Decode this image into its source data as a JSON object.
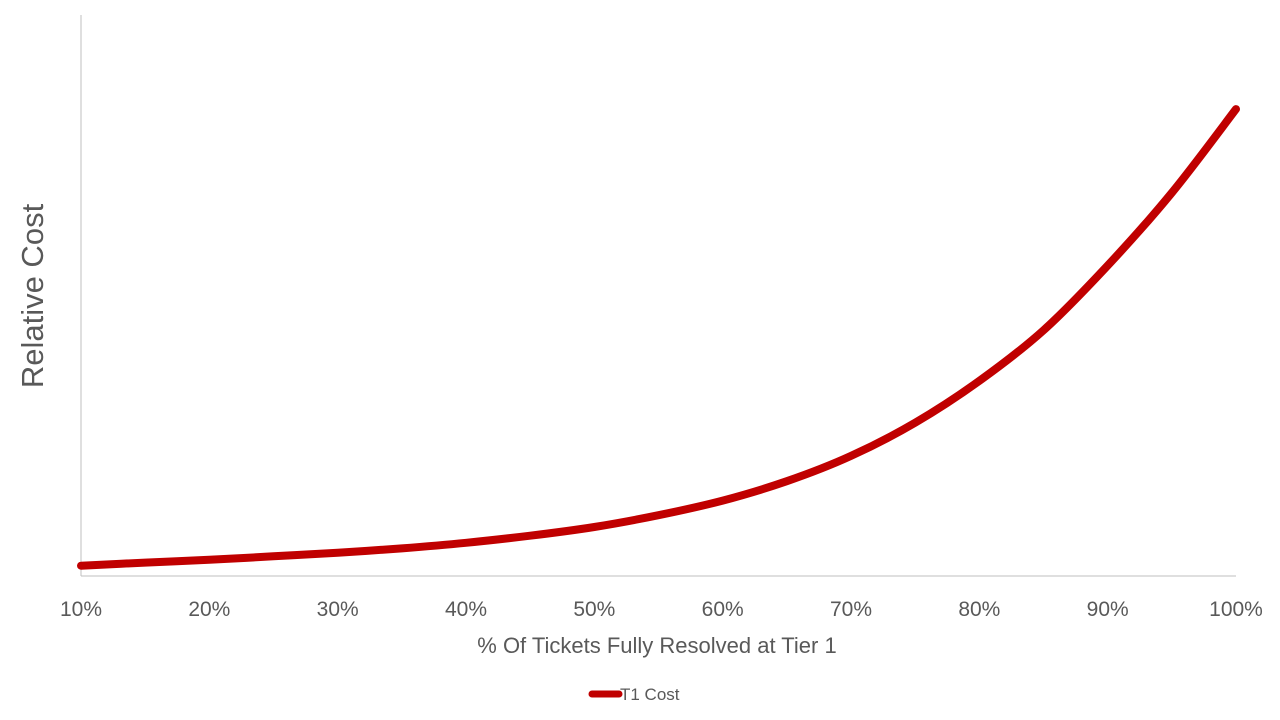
{
  "chart_data": {
    "type": "line",
    "title": "",
    "xlabel": "% Of Tickets Fully Resolved at Tier 1",
    "ylabel": "Relative Cost",
    "x_tick_labels": [
      "10%",
      "20%",
      "30%",
      "40%",
      "50%",
      "60%",
      "70%",
      "80%",
      "90%",
      "100%"
    ],
    "x": [
      10,
      15,
      20,
      25,
      30,
      35,
      40,
      45,
      50,
      55,
      60,
      65,
      70,
      75,
      80,
      85,
      90,
      95,
      100
    ],
    "xlim": [
      10,
      100
    ],
    "ylim": [
      0,
      100
    ],
    "series": [
      {
        "name": "T1 Cost",
        "color": "#C00000",
        "values": [
          2.6,
          3.4,
          4.1,
          5.0,
          5.9,
          7.0,
          8.4,
          10.2,
          12.4,
          15.4,
          19.1,
          24.0,
          30.4,
          38.8,
          49.4,
          62.2,
          78.6,
          97.0,
          118.2
        ]
      }
    ],
    "grid": false,
    "legend_position": "bottom"
  }
}
